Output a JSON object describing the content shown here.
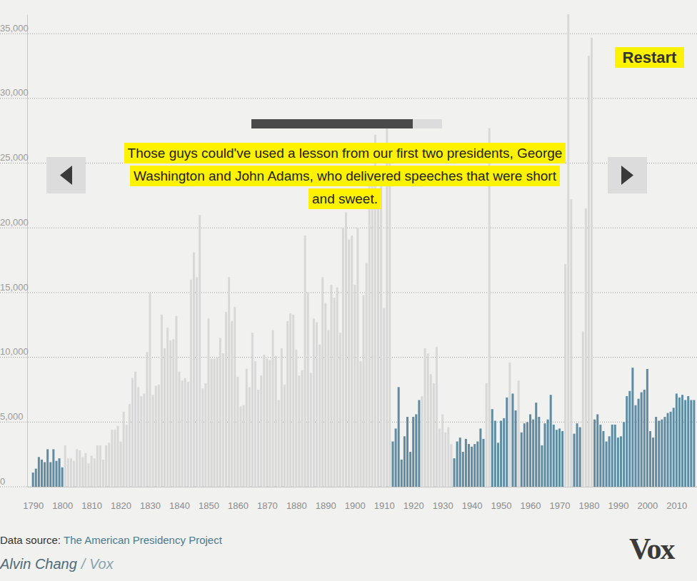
{
  "chart_data": {
    "type": "bar",
    "annotations": [
      "Those guys could've used a lesson from our first two presidents, George",
      "Washington and John Adams, who delivered speeches that were short",
      "and sweet."
    ],
    "x": [
      1790,
      1791,
      1792,
      1793,
      1794,
      1795,
      1796,
      1797,
      1798,
      1799,
      1800,
      1801,
      1802,
      1803,
      1804,
      1805,
      1806,
      1807,
      1808,
      1809,
      1810,
      1811,
      1812,
      1813,
      1814,
      1815,
      1816,
      1817,
      1818,
      1819,
      1820,
      1821,
      1822,
      1823,
      1824,
      1825,
      1826,
      1827,
      1828,
      1829,
      1830,
      1831,
      1832,
      1833,
      1834,
      1835,
      1836,
      1837,
      1838,
      1839,
      1840,
      1841,
      1842,
      1843,
      1844,
      1845,
      1846,
      1847,
      1848,
      1849,
      1850,
      1851,
      1852,
      1853,
      1854,
      1855,
      1856,
      1857,
      1858,
      1859,
      1860,
      1861,
      1862,
      1863,
      1864,
      1865,
      1866,
      1867,
      1868,
      1869,
      1870,
      1871,
      1872,
      1873,
      1874,
      1875,
      1876,
      1877,
      1878,
      1879,
      1880,
      1881,
      1882,
      1883,
      1884,
      1885,
      1886,
      1887,
      1888,
      1889,
      1890,
      1891,
      1892,
      1893,
      1894,
      1895,
      1896,
      1897,
      1898,
      1899,
      1900,
      1901,
      1902,
      1903,
      1904,
      1905,
      1906,
      1907,
      1908,
      1909,
      1910,
      1911,
      1912,
      1913,
      1914,
      1915,
      1916,
      1917,
      1918,
      1919,
      1920,
      1921,
      1922,
      1923,
      1924,
      1925,
      1926,
      1927,
      1928,
      1929,
      1930,
      1931,
      1932,
      1933,
      1934,
      1935,
      1936,
      1937,
      1938,
      1939,
      1940,
      1941,
      1942,
      1943,
      1944,
      1945,
      1946,
      1947,
      1948,
      1949,
      1950,
      1951,
      1952,
      1953,
      1954,
      1955,
      1956,
      1957,
      1958,
      1959,
      1960,
      1961,
      1962,
      1963,
      1964,
      1965,
      1966,
      1967,
      1968,
      1969,
      1970,
      1971,
      1972,
      1973,
      1974,
      1975,
      1976,
      1977,
      1978,
      1979,
      1980,
      1981,
      1982,
      1983,
      1984,
      1985,
      1986,
      1987,
      1988,
      1989,
      1990,
      1991,
      1992,
      1993,
      1994,
      1995,
      1996,
      1997,
      1998,
      1999,
      2000,
      2001,
      2002,
      2003,
      2004,
      2005,
      2006,
      2007,
      2008,
      2009,
      2010,
      2011,
      2012,
      2013,
      2014,
      2015,
      2016
    ],
    "values": [
      1100,
      1400,
      2300,
      2100,
      1900,
      2900,
      1900,
      2900,
      2000,
      2200,
      1500,
      3200,
      2200,
      2200,
      2000,
      2900,
      2800,
      2300,
      2600,
      1800,
      2400,
      2200,
      3200,
      3200,
      2100,
      3200,
      3400,
      4400,
      4400,
      4700,
      3500,
      5800,
      4800,
      6400,
      8400,
      8900,
      7700,
      7000,
      7200,
      10400,
      15000,
      7100,
      7800,
      7900,
      13300,
      10700,
      12300,
      11300,
      11400,
      13200,
      8900,
      8200,
      8400,
      8100,
      16000,
      18100,
      16200,
      21000,
      7600,
      8000,
      13000,
      9900,
      9900,
      10000,
      11500,
      10300,
      13500,
      16200,
      12800,
      13900,
      8500,
      6200,
      6300,
      9100,
      7700,
      11900,
      9700,
      7500,
      8600,
      10200,
      9900,
      9800,
      12100,
      10100,
      6700,
      10700,
      7900,
      12800,
      13400,
      13300,
      10600,
      8600,
      9000,
      19400,
      15000,
      8800,
      13000,
      12700,
      11000,
      16200,
      14200,
      12100,
      15600,
      14600,
      15400,
      11900,
      20000,
      21200,
      19100,
      19400,
      15600,
      20000,
      9700,
      14800,
      17300,
      24500,
      23500,
      27200,
      21500,
      24600,
      13800,
      27800,
      25000,
      3500,
      4500,
      7700,
      2100,
      3900,
      5400,
      2700,
      5400,
      5600,
      6700,
      7000,
      10700,
      10300,
      8700,
      8000,
      10800,
      4500,
      5600,
      4200,
      4600,
      3300,
      2200,
      3500,
      3800,
      2700,
      3700,
      3300,
      3100,
      3300,
      3500,
      4500,
      3700,
      8000,
      27700,
      6000,
      5100,
      3400,
      5100,
      5300,
      6900,
      9600,
      7200,
      5900,
      8200,
      4200,
      4900,
      5000,
      5600,
      5200,
      6500,
      5400,
      3200,
      4900,
      5200,
      7100,
      4800,
      4400,
      4500,
      4300,
      17200,
      36500,
      22200,
      4100,
      4900,
      4600,
      12000,
      21500,
      33300,
      34700,
      5200,
      5600,
      4800,
      4300,
      3500,
      3900,
      4800,
      4800,
      3800,
      3900,
      5000,
      7000,
      7400,
      9200,
      6300,
      6800,
      7300,
      7500,
      9100,
      4300,
      3800,
      5400,
      5100,
      5200,
      5400,
      5700,
      5800,
      6100,
      7200,
      6900,
      7100,
      6700,
      7000,
      6700,
      6700
    ],
    "colors": [
      "#5e8ca3",
      "#5e8ca3",
      "#5e8ca3",
      "#5e8ca3",
      "#5e8ca3",
      "#5e8ca3",
      "#5e8ca3",
      "#5e8ca3",
      "#5e8ca3",
      "#5e8ca3",
      "#5e8ca3",
      "#d8d8d8",
      "#d8d8d8",
      "#d8d8d8",
      "#d8d8d8",
      "#d8d8d8",
      "#d8d8d8",
      "#d8d8d8",
      "#d8d8d8",
      "#d8d8d8",
      "#d8d8d8",
      "#d8d8d8",
      "#d8d8d8",
      "#d8d8d8",
      "#d8d8d8",
      "#d8d8d8",
      "#d8d8d8",
      "#d8d8d8",
      "#d8d8d8",
      "#d8d8d8",
      "#d8d8d8",
      "#d8d8d8",
      "#d8d8d8",
      "#d8d8d8",
      "#d8d8d8",
      "#d8d8d8",
      "#d8d8d8",
      "#d8d8d8",
      "#d8d8d8",
      "#d8d8d8",
      "#d8d8d8",
      "#d8d8d8",
      "#d8d8d8",
      "#d8d8d8",
      "#d8d8d8",
      "#d8d8d8",
      "#d8d8d8",
      "#d8d8d8",
      "#d8d8d8",
      "#d8d8d8",
      "#d8d8d8",
      "#d8d8d8",
      "#d8d8d8",
      "#d8d8d8",
      "#d8d8d8",
      "#d8d8d8",
      "#d8d8d8",
      "#d8d8d8",
      "#d8d8d8",
      "#d8d8d8",
      "#d8d8d8",
      "#d8d8d8",
      "#d8d8d8",
      "#d8d8d8",
      "#d8d8d8",
      "#d8d8d8",
      "#d8d8d8",
      "#d8d8d8",
      "#d8d8d8",
      "#d8d8d8",
      "#d8d8d8",
      "#d8d8d8",
      "#d8d8d8",
      "#d8d8d8",
      "#d8d8d8",
      "#d8d8d8",
      "#d8d8d8",
      "#d8d8d8",
      "#d8d8d8",
      "#d8d8d8",
      "#d8d8d8",
      "#d8d8d8",
      "#d8d8d8",
      "#d8d8d8",
      "#d8d8d8",
      "#d8d8d8",
      "#d8d8d8",
      "#d8d8d8",
      "#d8d8d8",
      "#d8d8d8",
      "#d8d8d8",
      "#d8d8d8",
      "#d8d8d8",
      "#d8d8d8",
      "#d8d8d8",
      "#d8d8d8",
      "#d8d8d8",
      "#d8d8d8",
      "#d8d8d8",
      "#d8d8d8",
      "#d8d8d8",
      "#d8d8d8",
      "#d8d8d8",
      "#d8d8d8",
      "#d8d8d8",
      "#d8d8d8",
      "#d8d8d8",
      "#d8d8d8",
      "#d8d8d8",
      "#d8d8d8",
      "#d8d8d8",
      "#d8d8d8",
      "#d8d8d8",
      "#d8d8d8",
      "#d8d8d8",
      "#d8d8d8",
      "#d8d8d8",
      "#d8d8d8",
      "#d8d8d8",
      "#d8d8d8",
      "#d8d8d8",
      "#d8d8d8",
      "#d8d8d8",
      "#5e8ca3",
      "#5e8ca3",
      "#5e8ca3",
      "#5e8ca3",
      "#5e8ca3",
      "#5e8ca3",
      "#5e8ca3",
      "#5e8ca3",
      "#5e8ca3",
      "#5e8ca3",
      "#d8d8d8",
      "#d8d8d8",
      "#d8d8d8",
      "#d8d8d8",
      "#d8d8d8",
      "#d8d8d8",
      "#d8d8d8",
      "#d8d8d8",
      "#d8d8d8",
      "#d8d8d8",
      "#d8d8d8",
      "#5e8ca3",
      "#5e8ca3",
      "#5e8ca3",
      "#5e8ca3",
      "#5e8ca3",
      "#5e8ca3",
      "#5e8ca3",
      "#5e8ca3",
      "#5e8ca3",
      "#5e8ca3",
      "#5e8ca3",
      "#d8d8d8",
      "#d8d8d8",
      "#5e8ca3",
      "#5e8ca3",
      "#5e8ca3",
      "#5e8ca3",
      "#5e8ca3",
      "#5e8ca3",
      "#d8d8d8",
      "#5e8ca3",
      "#5e8ca3",
      "#d8d8d8",
      "#5e8ca3",
      "#5e8ca3",
      "#5e8ca3",
      "#5e8ca3",
      "#5e8ca3",
      "#5e8ca3",
      "#5e8ca3",
      "#5e8ca3",
      "#5e8ca3",
      "#5e8ca3",
      "#5e8ca3",
      "#5e8ca3",
      "#5e8ca3",
      "#5e8ca3",
      "#5e8ca3",
      "#d8d8d8",
      "#d8d8d8",
      "#d8d8d8",
      "#5e8ca3",
      "#5e8ca3",
      "#5e8ca3",
      "#d8d8d8",
      "#d8d8d8",
      "#d8d8d8",
      "#d8d8d8",
      "#5e8ca3",
      "#5e8ca3",
      "#5e8ca3",
      "#5e8ca3",
      "#5e8ca3",
      "#5e8ca3",
      "#5e8ca3",
      "#5e8ca3",
      "#5e8ca3",
      "#5e8ca3",
      "#5e8ca3",
      "#5e8ca3",
      "#5e8ca3",
      "#5e8ca3",
      "#5e8ca3",
      "#5e8ca3",
      "#5e8ca3",
      "#5e8ca3",
      "#5e8ca3",
      "#5e8ca3",
      "#5e8ca3",
      "#5e8ca3",
      "#5e8ca3",
      "#5e8ca3",
      "#5e8ca3",
      "#5e8ca3",
      "#5e8ca3",
      "#5e8ca3",
      "#5e8ca3",
      "#5e8ca3",
      "#5e8ca3",
      "#5e8ca3",
      "#5e8ca3",
      "#5e8ca3",
      "#5e8ca3"
    ],
    "xlim": [
      1788,
      2017
    ],
    "xticks": [
      1790,
      1800,
      1810,
      1820,
      1830,
      1840,
      1850,
      1860,
      1870,
      1880,
      1890,
      1900,
      1910,
      1920,
      1930,
      1940,
      1950,
      1960,
      1970,
      1980,
      1990,
      2000,
      2010
    ],
    "ylim": [
      0,
      36500
    ],
    "yticks": [
      0,
      {
        "value": 5000,
        "label": "5,000"
      },
      {
        "value": 10000,
        "label": "10,000"
      },
      {
        "value": 15000,
        "label": "15,000"
      },
      {
        "value": 20000,
        "label": "20,000"
      },
      {
        "value": 25000,
        "label": "25,000"
      },
      {
        "value": 30000,
        "label": "30,000"
      },
      {
        "value": 35000,
        "label": "35,000"
      }
    ],
    "grid": true
  },
  "page": {
    "button": "Restart",
    "source_label": "Data source:",
    "source": "The American Presidency Project",
    "author": "Alvin Chang",
    "publisher": "/ Vox",
    "logo": "Vox"
  }
}
